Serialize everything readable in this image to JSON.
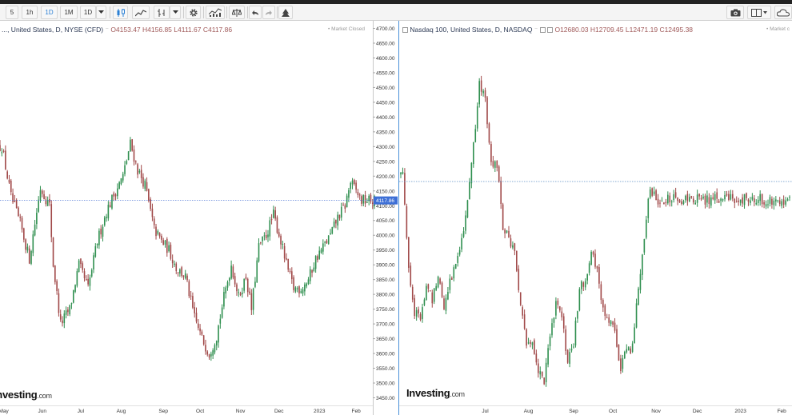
{
  "toolbar": {
    "buttons": [
      {
        "label": "5"
      },
      {
        "label": "1h"
      },
      {
        "label": "1D",
        "active": true
      },
      {
        "label": "1M"
      },
      {
        "label": "1D"
      }
    ],
    "tool_icons": [
      "dropdown-arrow-icon",
      "candlestick-icon",
      "line-chart-icon",
      "bar-style-icon",
      "dropdown-arrow-icon",
      "settings-gear-icon",
      "indicators-icon",
      "compare-icon",
      "undo-icon",
      "redo-icon",
      "drawing-tool-icon"
    ],
    "right_icons": [
      "camera-icon",
      "layout-icon",
      "cloud-icon"
    ]
  },
  "colors": {
    "up": "#2f8f4f",
    "down": "#a04848",
    "accent": "#2a7fd4",
    "price_tag": "#3d6fd6"
  },
  "chart1": {
    "legend": {
      "symbol": "..., United States, D, NYSE (CFD)",
      "open": "O4153.47",
      "high": "H4156.85",
      "low": "L4111.67",
      "close": "C4117.86"
    },
    "market_status": "• Market Closed",
    "current_price": "4117.86",
    "logo_text": "Investing",
    "logo_domain": ".com"
  },
  "chart2": {
    "legend": {
      "symbol": "Nasdaq 100, United States, D, NASDAQ",
      "open": "O12680.03",
      "high": "H12709.45",
      "low": "L12471.19",
      "close": "C12495.38"
    },
    "market_status": "• Market c",
    "logo_text": "Investing",
    "logo_domain": ".com"
  },
  "chart_data": [
    {
      "type": "candlestick",
      "title": "..., United States, D, NYSE (CFD)",
      "ylim": [
        3430,
        4710
      ],
      "yticks": [
        3450,
        3500,
        3550,
        3600,
        3650,
        3700,
        3750,
        3800,
        3850,
        3900,
        3950,
        4000,
        4050,
        4100,
        4150,
        4200,
        4250,
        4300,
        4350,
        4400,
        4450,
        4500,
        4550,
        4600,
        4650,
        4700
      ],
      "ytick_labels": [
        "3450.00",
        "3500.00",
        "3550.00",
        "3600.00",
        "3650.00",
        "3700.00",
        "3750.00",
        "3800.00",
        "3850.00",
        "3900.00",
        "3950.00",
        "4000.00",
        "4050.00",
        "4100.00",
        "4150.00",
        "4200.00",
        "4250.00",
        "4300.00",
        "4350.00",
        "4400.00",
        "4450.00",
        "4500.00",
        "4550.00",
        "4600.00",
        "4650.00",
        "4700.00"
      ],
      "xticks": [
        {
          "label": "May",
          "day": 2
        },
        {
          "label": "Jun",
          "day": 23
        },
        {
          "label": "Jul",
          "day": 44
        },
        {
          "label": "Aug",
          "day": 66
        },
        {
          "label": "Sep",
          "day": 89
        },
        {
          "label": "Oct",
          "day": 109
        },
        {
          "label": "Nov",
          "day": 131
        },
        {
          "label": "Dec",
          "day": 152
        },
        {
          "label": "2023",
          "day": 174
        },
        {
          "label": "Feb",
          "day": 194
        }
      ],
      "day_range": [
        0,
        204
      ],
      "current_value": 4117.86,
      "candles": [
        [
          1,
          4300
        ],
        [
          6,
          4130
        ],
        [
          11,
          4040
        ],
        [
          16,
          3920
        ],
        [
          22,
          4160
        ],
        [
          27,
          4100
        ],
        [
          29,
          3900
        ],
        [
          33,
          3700
        ],
        [
          38,
          3750
        ],
        [
          43,
          3900
        ],
        [
          48,
          3820
        ],
        [
          53,
          3980
        ],
        [
          58,
          4080
        ],
        [
          63,
          4150
        ],
        [
          67,
          4200
        ],
        [
          71,
          4310
        ],
        [
          75,
          4220
        ],
        [
          79,
          4170
        ],
        [
          84,
          4020
        ],
        [
          88,
          3980
        ],
        [
          92,
          3950
        ],
        [
          96,
          3890
        ],
        [
          101,
          3860
        ],
        [
          106,
          3720
        ],
        [
          110,
          3650
        ],
        [
          114,
          3600
        ],
        [
          118,
          3660
        ],
        [
          122,
          3790
        ],
        [
          126,
          3900
        ],
        [
          130,
          3790
        ],
        [
          134,
          3860
        ],
        [
          137,
          3750
        ],
        [
          141,
          3960
        ],
        [
          145,
          4000
        ],
        [
          149,
          4070
        ],
        [
          153,
          3980
        ],
        [
          156,
          3900
        ],
        [
          160,
          3820
        ],
        [
          164,
          3820
        ],
        [
          168,
          3850
        ],
        [
          172,
          3920
        ],
        [
          176,
          3960
        ],
        [
          180,
          4000
        ],
        [
          184,
          4060
        ],
        [
          188,
          4100
        ],
        [
          191,
          4180
        ],
        [
          194,
          4150
        ],
        [
          197,
          4117.86
        ]
      ]
    },
    {
      "type": "candlestick",
      "title": "Nasdaq 100, United States, D, NASDAQ",
      "reference_line": true,
      "xticks": [
        {
          "label": "Jul",
          "day": 23
        },
        {
          "label": "Aug",
          "day": 45
        },
        {
          "label": "Sep",
          "day": 68
        },
        {
          "label": "Oct",
          "day": 88
        },
        {
          "label": "Nov",
          "day": 110
        },
        {
          "label": "Dec",
          "day": 131
        },
        {
          "label": "2023",
          "day": 153
        },
        {
          "label": "Feb",
          "day": 174
        }
      ],
      "day_range": [
        -20,
        178
      ],
      "ylim": [
        10600,
        13300
      ],
      "candles": [
        [
          -19,
          12400
        ],
        [
          -16,
          11700
        ],
        [
          -13,
          11350
        ],
        [
          -10,
          11300
        ],
        [
          -7,
          11550
        ],
        [
          -4,
          11450
        ],
        [
          -1,
          11650
        ],
        [
          2,
          11400
        ],
        [
          5,
          11600
        ],
        [
          8,
          11700
        ],
        [
          11,
          11900
        ],
        [
          14,
          12200
        ],
        [
          17,
          12600
        ],
        [
          20,
          13050
        ],
        [
          23,
          12950
        ],
        [
          26,
          12500
        ],
        [
          29,
          12450
        ],
        [
          32,
          12000
        ],
        [
          35,
          11900
        ],
        [
          38,
          11800
        ],
        [
          41,
          11400
        ],
        [
          44,
          11100
        ],
        [
          47,
          11150
        ],
        [
          50,
          10900
        ],
        [
          53,
          10850
        ],
        [
          56,
          11150
        ],
        [
          59,
          11450
        ],
        [
          62,
          11300
        ],
        [
          65,
          10980
        ],
        [
          68,
          11100
        ],
        [
          71,
          11550
        ],
        [
          74,
          11600
        ],
        [
          77,
          11800
        ],
        [
          80,
          11650
        ],
        [
          83,
          11350
        ],
        [
          86,
          11300
        ],
        [
          89,
          11180
        ],
        [
          92,
          10950
        ],
        [
          95,
          11050
        ],
        [
          98,
          11100
        ],
        [
          101,
          11550
        ],
        [
          104,
          11900
        ],
        [
          107,
          12300
        ],
        [
          110,
          12200
        ]
      ]
    }
  ]
}
